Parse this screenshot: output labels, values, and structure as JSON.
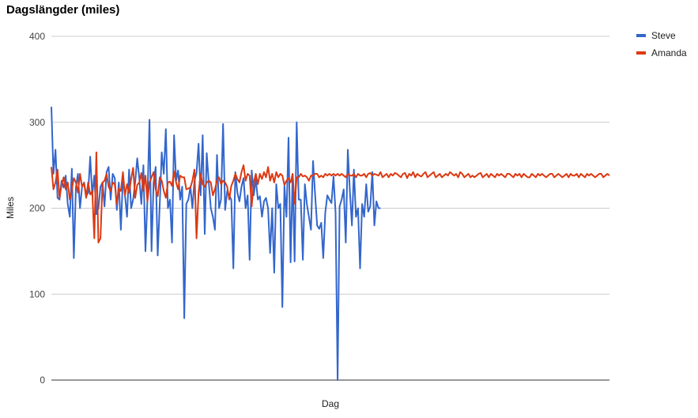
{
  "chart_data": {
    "type": "line",
    "title": "Dagslängder (miles)",
    "xlabel": "Dag",
    "ylabel": "Miles",
    "ylim": [
      0,
      400
    ],
    "yticks": [
      0,
      100,
      200,
      300,
      400
    ],
    "grid": true,
    "legend_position": "top-right",
    "series": [
      {
        "name": "Steve",
        "color": "#3366cc",
        "values": [
          318,
          240,
          268,
          212,
          210,
          232,
          224,
          238,
          205,
          190,
          246,
          142,
          224,
          240,
          200,
          225,
          230,
          214,
          218,
          260,
          215,
          238,
          193,
          200,
          225,
          230,
          202,
          242,
          248,
          210,
          240,
          235,
          198,
          230,
          175,
          236,
          215,
          190,
          245,
          200,
          210,
          230,
          258,
          235,
          205,
          250,
          150,
          210,
          303,
          150,
          230,
          248,
          145,
          205,
          265,
          240,
          292,
          200,
          210,
          160,
          285,
          232,
          244,
          210,
          225,
          72,
          205,
          210,
          225,
          200,
          232,
          241,
          275,
          215,
          285,
          170,
          264,
          230,
          200,
          190,
          175,
          262,
          200,
          210,
          298,
          198,
          220,
          215,
          210,
          130,
          242,
          218,
          208,
          225,
          235,
          200,
          215,
          140,
          244,
          215,
          234,
          210,
          214,
          190,
          208,
          212,
          200,
          148,
          200,
          125,
          228,
          200,
          205,
          85,
          226,
          190,
          282,
          137,
          240,
          138,
          300,
          210,
          210,
          140,
          228,
          204,
          190,
          175,
          255,
          216,
          180,
          176,
          183,
          142,
          195,
          215,
          210,
          206,
          237,
          195,
          0,
          202,
          210,
          222,
          160,
          268,
          220,
          180,
          245,
          190,
          200,
          130,
          205,
          190,
          228,
          196,
          202,
          242,
          180,
          208,
          200,
          200
        ],
        "start_day": 1
      },
      {
        "name": "Amanda",
        "color": "#dc3912",
        "values": [
          248,
          222,
          230,
          245,
          212,
          227,
          236,
          222,
          230,
          210,
          222,
          235,
          230,
          218,
          240,
          225,
          229,
          212,
          230,
          216,
          220,
          165,
          265,
          160,
          165,
          230,
          232,
          240,
          225,
          220,
          230,
          228,
          205,
          223,
          220,
          242,
          215,
          228,
          218,
          234,
          247,
          212,
          227,
          230,
          241,
          220,
          238,
          208,
          230,
          236,
          242,
          222,
          214,
          236,
          232,
          220,
          212,
          230,
          231,
          226,
          243,
          230,
          222,
          238,
          236,
          236,
          222,
          223,
          224,
          232,
          245,
          165,
          218,
          240,
          228,
          225,
          230,
          232,
          230,
          215,
          222,
          232,
          236,
          228,
          232,
          230,
          225,
          210,
          226,
          232,
          240,
          234,
          230,
          242,
          250,
          232,
          240,
          238,
          202,
          230,
          240,
          228,
          240,
          234,
          242,
          236,
          248,
          232,
          240,
          230,
          242,
          236,
          240,
          238,
          227,
          232,
          235,
          230,
          240,
          205,
          236,
          236,
          240,
          237,
          238,
          236,
          232,
          238,
          238,
          240,
          240,
          236,
          238,
          236,
          240,
          238,
          240,
          238,
          240,
          238,
          240,
          238,
          240,
          238,
          236,
          240,
          238,
          238,
          240,
          236,
          240,
          238,
          238,
          240,
          236,
          240,
          241,
          238,
          240,
          239,
          238,
          242,
          236,
          238,
          240,
          236,
          240,
          238,
          241,
          240,
          238,
          236,
          240,
          241,
          235,
          240,
          238,
          242,
          236,
          240,
          238,
          237,
          240,
          242,
          236,
          238,
          240,
          242,
          236,
          238,
          240,
          236,
          238,
          240,
          238,
          242,
          240,
          238,
          240,
          236,
          242,
          240,
          236,
          238,
          240,
          236,
          238,
          236,
          238,
          240,
          241,
          236,
          238,
          240,
          236,
          240,
          238,
          236,
          240,
          238,
          240,
          238,
          236,
          240,
          240,
          238,
          236,
          240,
          238,
          240,
          236,
          240,
          238,
          236,
          236,
          240,
          238,
          236,
          240,
          238,
          240,
          238,
          236,
          238,
          240,
          240,
          236,
          238,
          240,
          238,
          236,
          238,
          240,
          236,
          240,
          238,
          238,
          240,
          236,
          240,
          238,
          236,
          240,
          238,
          240,
          238,
          236,
          238,
          240,
          240,
          236,
          238,
          240,
          238
        ],
        "start_day": 1
      }
    ]
  }
}
